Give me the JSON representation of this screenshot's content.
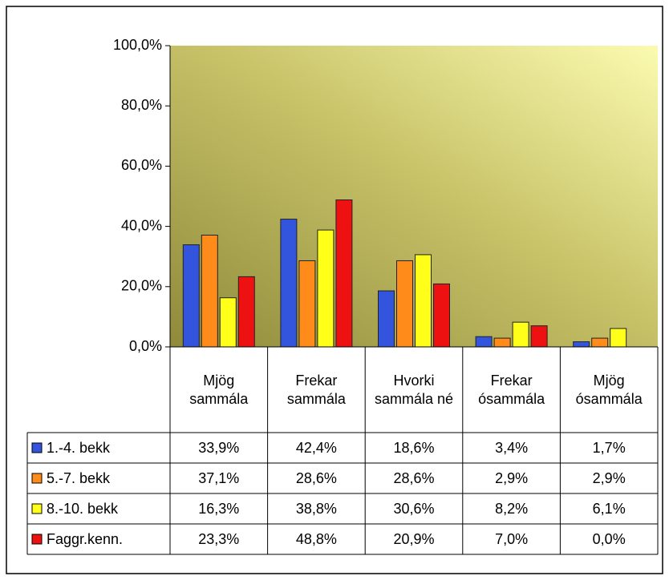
{
  "chart_data": {
    "type": "bar",
    "categories": [
      "Mjög sammála",
      "Frekar sammála",
      "Hvorki sammála né",
      "Frekar ósammála",
      "Mjög ósammála"
    ],
    "series": [
      {
        "name": "1.-4. bekk",
        "color": "#3355dd",
        "values": [
          33.9,
          42.4,
          18.6,
          3.4,
          1.7
        ],
        "value_labels": [
          "33,9%",
          "42,4%",
          "18,6%",
          "3,4%",
          "1,7%"
        ]
      },
      {
        "name": "5.-7. bekk",
        "color": "#ff8c1a",
        "values": [
          37.1,
          28.6,
          28.6,
          2.9,
          2.9
        ],
        "value_labels": [
          "37,1%",
          "28,6%",
          "28,6%",
          "2,9%",
          "2,9%"
        ]
      },
      {
        "name": "8.-10. bekk",
        "color": "#ffff1a",
        "values": [
          16.3,
          38.8,
          30.6,
          8.2,
          6.1
        ],
        "value_labels": [
          "16,3%",
          "38,8%",
          "30,6%",
          "8,2%",
          "6,1%"
        ]
      },
      {
        "name": "Faggr.kenn.",
        "color": "#ee1111",
        "values": [
          23.3,
          48.8,
          20.9,
          7.0,
          0.0
        ],
        "value_labels": [
          "23,3%",
          "48,8%",
          "20,9%",
          "7,0%",
          "0,0%"
        ]
      }
    ],
    "ylim": [
      0,
      100
    ],
    "yticks": [
      {
        "value": 0,
        "label": "0,0%"
      },
      {
        "value": 20,
        "label": "20,0%"
      },
      {
        "value": 40,
        "label": "40,0%"
      },
      {
        "value": 60,
        "label": "60,0%"
      },
      {
        "value": 80,
        "label": "80,0%"
      },
      {
        "value": 100,
        "label": "100,0%"
      }
    ],
    "grid": false
  }
}
